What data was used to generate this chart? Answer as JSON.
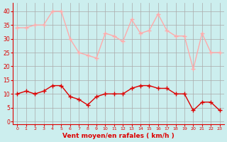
{
  "hours": [
    0,
    1,
    2,
    3,
    4,
    5,
    6,
    7,
    8,
    9,
    10,
    11,
    12,
    13,
    14,
    15,
    16,
    17,
    18,
    19,
    20,
    21,
    22,
    23
  ],
  "avg_wind": [
    10,
    11,
    10,
    11,
    13,
    13,
    9,
    8,
    6,
    9,
    10,
    10,
    10,
    12,
    13,
    13,
    12,
    12,
    10,
    10,
    4,
    7,
    7,
    4
  ],
  "gust_wind": [
    34,
    34,
    35,
    35,
    40,
    40,
    30,
    25,
    24,
    23,
    32,
    31,
    29,
    37,
    32,
    33,
    39,
    33,
    31,
    31,
    19,
    32,
    25,
    25
  ],
  "avg_color": "#dd0000",
  "gust_color": "#ffaaaa",
  "bg_color": "#cceeee",
  "grid_color": "#aaaaaa",
  "xlabel": "Vent moyen/en rafales ( km/h )",
  "xlabel_color": "#dd0000",
  "tick_color": "#dd0000",
  "yticks": [
    0,
    5,
    10,
    15,
    20,
    25,
    30,
    35,
    40
  ],
  "ylim": [
    -1,
    43
  ],
  "xlim": [
    -0.5,
    23.5
  ]
}
